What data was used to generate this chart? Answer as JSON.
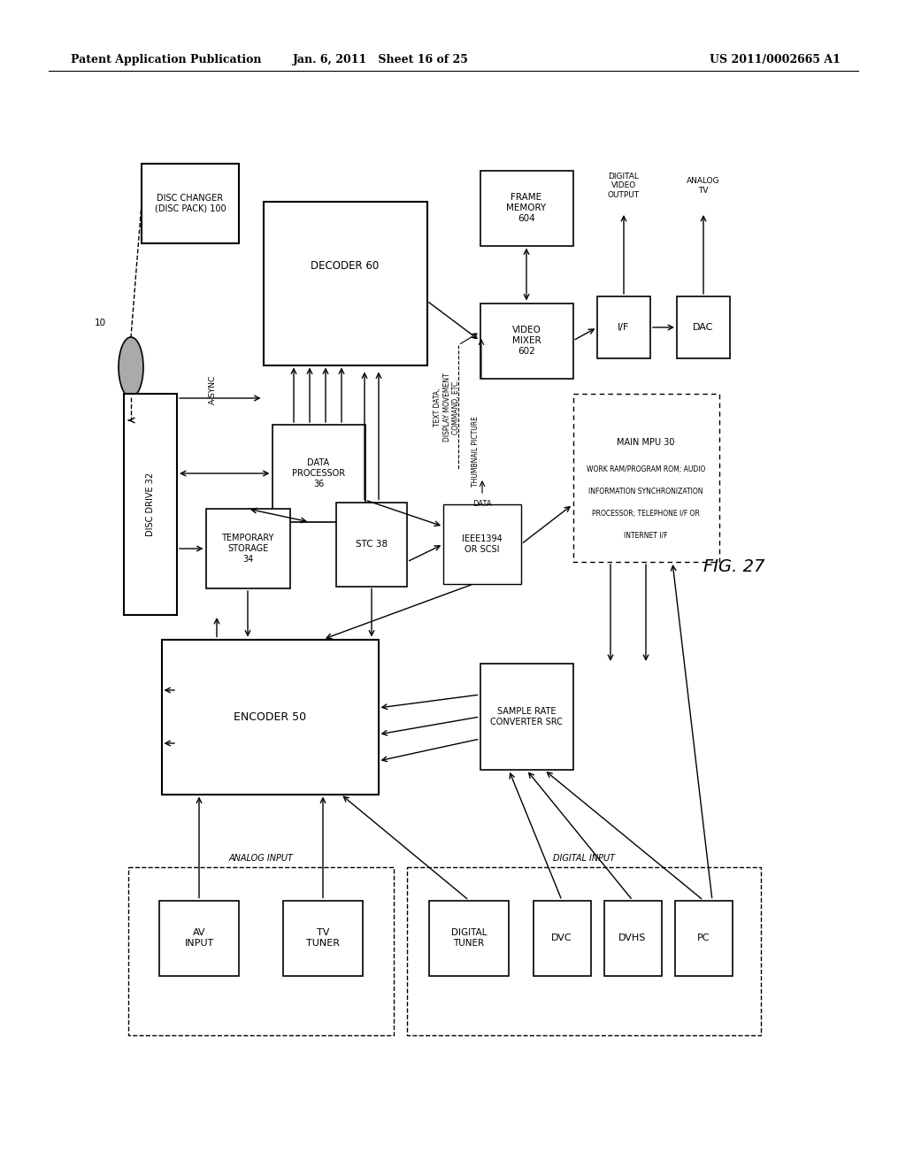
{
  "bg_color": "#ffffff",
  "header_left": "Patent Application Publication",
  "header_mid": "Jan. 6, 2011   Sheet 16 of 25",
  "header_right": "US 2011/0002665 A1",
  "fig_label": "FIG. 27"
}
